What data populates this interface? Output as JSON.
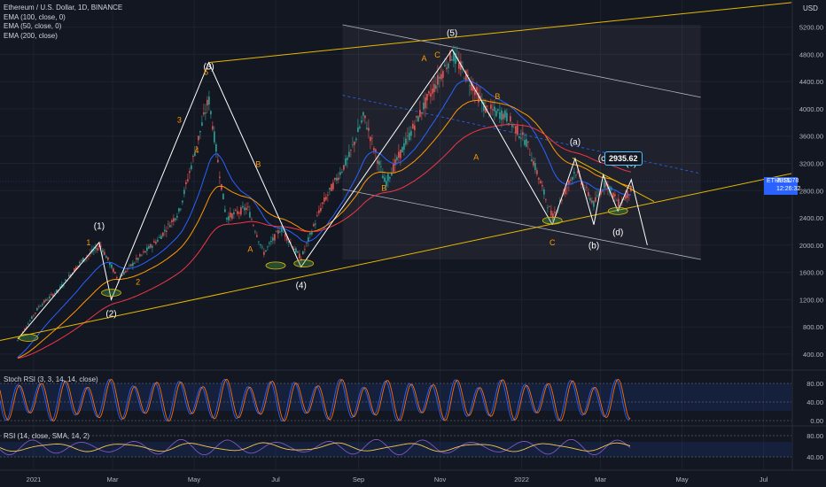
{
  "header": {
    "title": "Ethereum / U.S. Dollar, 1D, BINANCE",
    "indicators": [
      "EMA (100, close, 0)",
      "EMA (50, close, 0)",
      "EMA (200, close)"
    ]
  },
  "price_axis": {
    "unit": "USD",
    "ticks": [
      "5200.00",
      "4800.00",
      "4400.00",
      "4000.00",
      "3600.00",
      "3200.00",
      "2800.00",
      "2400.00",
      "2000.00",
      "1600.00",
      "1200.00",
      "800.00",
      "400.00"
    ]
  },
  "time_axis": {
    "ticks": [
      "2021",
      "Mar",
      "May",
      "Jul",
      "Sep",
      "Nov",
      "2022",
      "Mar",
      "May",
      "Jul"
    ]
  },
  "current_price": {
    "symbol": "ETHUSD",
    "price": "2815.78",
    "countdown": "12:26:32"
  },
  "callout_price": "2935.62",
  "stoch_pane": {
    "label": "Stoch RSI (3, 3, 14, 14, close)",
    "ticks": [
      "80.00",
      "40.00",
      "0.00"
    ]
  },
  "rsi_pane": {
    "label": "RSI (14, close, SMA, 14, 2)",
    "ticks": [
      "80.00",
      "40.00"
    ]
  },
  "wave_labels": [
    "(1)",
    "(2)",
    "(3)",
    "(4)",
    "(5)",
    "1",
    "2",
    "3",
    "4",
    "5",
    "A",
    "B",
    "C",
    "(a)",
    "(b)",
    "(c)",
    "(d)",
    "(e)"
  ],
  "colors": {
    "up": "#26a69a",
    "down": "#ef5350",
    "ema50": "#2962ff",
    "ema100": "#ff9800",
    "ema200": "#f23645",
    "trend": "#e6b800",
    "wave": "#ffffff",
    "label": "#ff9800",
    "bg": "#131722"
  },
  "chart_data": {
    "type": "line",
    "title": "Ethereum / U.S. Dollar, 1D, BINANCE",
    "xlabel": "",
    "ylabel": "USD",
    "ylim": [
      100,
      5500
    ],
    "x": [
      "2020-12-20",
      "2021-01-05",
      "2021-01-20",
      "2021-02-05",
      "2021-02-20",
      "2021-03-05",
      "2021-03-20",
      "2021-04-05",
      "2021-04-20",
      "2021-05-12",
      "2021-05-25",
      "2021-06-10",
      "2021-06-22",
      "2021-07-05",
      "2021-07-20",
      "2021-08-05",
      "2021-08-25",
      "2021-09-05",
      "2021-09-21",
      "2021-10-05",
      "2021-10-20",
      "2021-11-10",
      "2021-11-25",
      "2021-12-05",
      "2021-12-20",
      "2022-01-05",
      "2022-01-24",
      "2022-02-10",
      "2022-02-24",
      "2022-03-05",
      "2022-03-15",
      "2022-03-24"
    ],
    "series": [
      {
        "name": "ETHUSD",
        "values": [
          600,
          1100,
          1350,
          1750,
          2000,
          1500,
          1800,
          2100,
          2500,
          4150,
          2400,
          2550,
          1880,
          2250,
          1800,
          2600,
          3300,
          3900,
          2900,
          3450,
          4050,
          4800,
          4350,
          4000,
          3900,
          3500,
          2400,
          3100,
          2600,
          2930,
          2600,
          2815
        ]
      }
    ],
    "current_price": 2815.78,
    "callout_price": 2935.62,
    "waves": [
      {
        "label": "(1)",
        "date": "2021-02-19",
        "price": 2040
      },
      {
        "label": "(2)",
        "date": "2021-02-28",
        "price": 1300
      },
      {
        "label": "(3)",
        "date": "2021-05-12",
        "price": 4380
      },
      {
        "label": "(4)",
        "date": "2021-07-20",
        "price": 1720
      },
      {
        "label": "(5)",
        "date": "2021-11-10",
        "price": 4870
      },
      {
        "label": "(a)",
        "date": "2022-02-10",
        "price": 3270
      },
      {
        "label": "(b)",
        "date": "2022-02-24",
        "price": 2300
      },
      {
        "label": "(c)",
        "date": "2022-03-03",
        "price": 3030
      },
      {
        "label": "(d)",
        "date": "2022-03-14",
        "price": 2500
      },
      {
        "label": "(e)",
        "date": "2022-03-24",
        "price": 2960
      }
    ]
  }
}
